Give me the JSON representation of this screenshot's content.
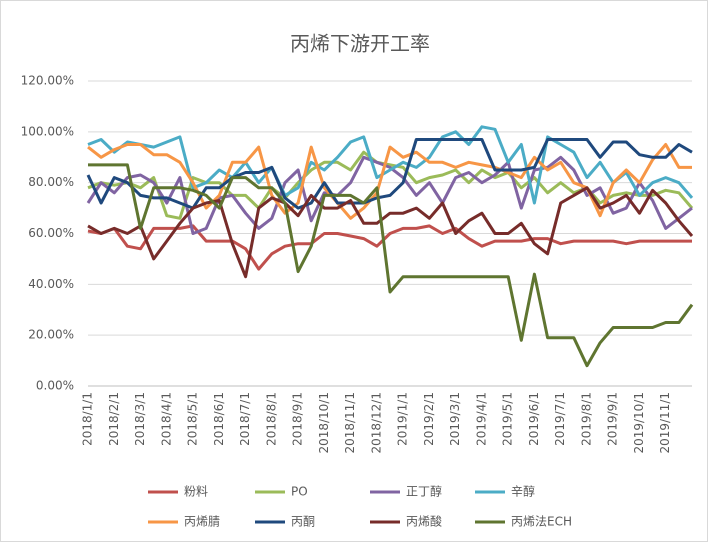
{
  "chart_data": {
    "type": "line",
    "title": "丙烯下游开工率",
    "categories": [
      "2018/1/1",
      null,
      "2018/2/1",
      null,
      "2018/3/1",
      null,
      "2018/4/1",
      null,
      "2018/5/1",
      null,
      "2018/6/1",
      null,
      "2018/7/1",
      null,
      "2018/8/1",
      null,
      "2018/9/1",
      null,
      "2018/10/1",
      null,
      "2018/11/1",
      null,
      "2018/12/1",
      null,
      "2019/1/1",
      null,
      "2019/2/1",
      null,
      "2019/3/1",
      null,
      "2019/4/1",
      null,
      "2019/5/1",
      null,
      "2019/6/1",
      null,
      "2019/7/1",
      null,
      "2019/8/1",
      null,
      "2019/9/1",
      null,
      "2019/10/1",
      null,
      "2019/11/1",
      null,
      null
    ],
    "ylim": [
      0,
      120
    ],
    "yticks": [
      {
        "value": 0,
        "label": "0.00%"
      },
      {
        "value": 20,
        "label": "20.00%"
      },
      {
        "value": 40,
        "label": "40.00%"
      },
      {
        "value": 60,
        "label": "60.00%"
      },
      {
        "value": 80,
        "label": "80.00%"
      },
      {
        "value": 100,
        "label": "100.00%"
      },
      {
        "value": 120,
        "label": "120.00%"
      }
    ],
    "grid": true,
    "legend": "bottom",
    "series": [
      {
        "name": "粉料",
        "color": "#c0504d",
        "values": [
          61,
          60,
          62,
          55,
          54,
          62,
          62,
          62,
          63,
          57,
          57,
          57,
          54,
          46,
          52,
          55,
          56,
          56,
          60,
          60,
          59,
          58,
          55,
          60,
          62,
          62,
          63,
          60,
          62,
          58,
          55,
          57,
          57,
          57,
          58,
          58,
          56,
          57,
          57,
          57,
          57,
          56,
          57,
          57,
          57,
          57,
          57
        ]
      },
      {
        "name": "PO",
        "color": "#9bbb59",
        "values": [
          78,
          80,
          79,
          80,
          78,
          82,
          67,
          66,
          82,
          80,
          80,
          75,
          75,
          70,
          78,
          74,
          80,
          85,
          88,
          88,
          85,
          92,
          88,
          87,
          86,
          80,
          82,
          83,
          85,
          80,
          85,
          82,
          84,
          78,
          82,
          76,
          80,
          76,
          78,
          72,
          75,
          76,
          75,
          75,
          77,
          76,
          70
        ]
      },
      {
        "name": "正丁醇",
        "color": "#8064a2",
        "values": [
          72,
          80,
          76,
          82,
          83,
          80,
          72,
          82,
          60,
          62,
          74,
          75,
          68,
          62,
          66,
          80,
          85,
          65,
          76,
          75,
          80,
          90,
          88,
          86,
          82,
          75,
          80,
          72,
          82,
          84,
          80,
          83,
          88,
          70,
          85,
          86,
          90,
          85,
          75,
          78,
          68,
          70,
          80,
          73,
          62,
          66,
          70
        ]
      },
      {
        "name": "辛醇",
        "color": "#4bacc6",
        "values": [
          95,
          97,
          92,
          96,
          95,
          94,
          96,
          98,
          78,
          80,
          85,
          82,
          88,
          80,
          86,
          75,
          78,
          88,
          85,
          90,
          96,
          98,
          82,
          85,
          88,
          86,
          90,
          98,
          100,
          95,
          102,
          101,
          88,
          95,
          72,
          98,
          95,
          92,
          82,
          88,
          80,
          84,
          75,
          80,
          82,
          80,
          74
        ]
      },
      {
        "name": "丙烯腈",
        "color": "#f79646",
        "values": [
          94,
          90,
          93,
          95,
          95,
          91,
          91,
          88,
          80,
          70,
          75,
          88,
          88,
          94,
          75,
          68,
          72,
          94,
          78,
          72,
          66,
          70,
          76,
          94,
          90,
          92,
          88,
          88,
          86,
          88,
          87,
          86,
          84,
          82,
          90,
          85,
          88,
          80,
          78,
          67,
          80,
          85,
          80,
          89,
          95,
          86,
          86
        ]
      },
      {
        "name": "丙酮",
        "color": "#1f497d",
        "values": [
          83,
          72,
          82,
          80,
          75,
          74,
          74,
          72,
          70,
          78,
          78,
          82,
          84,
          84,
          86,
          74,
          70,
          72,
          80,
          72,
          72,
          72,
          74,
          75,
          80,
          97,
          97,
          97,
          97,
          97,
          97,
          85,
          85,
          85,
          86,
          97,
          97,
          97,
          97,
          90,
          96,
          96,
          91,
          90,
          90,
          95,
          92
        ]
      },
      {
        "name": "丙烯酸",
        "color": "#772c2a",
        "values": [
          63,
          60,
          62,
          60,
          63,
          50,
          57,
          64,
          70,
          72,
          73,
          56,
          43,
          70,
          74,
          72,
          67,
          75,
          70,
          70,
          73,
          64,
          64,
          68,
          68,
          70,
          66,
          72,
          60,
          65,
          68,
          60,
          60,
          64,
          56,
          52,
          72,
          75,
          78,
          70,
          72,
          75,
          68,
          77,
          72,
          65,
          59
        ]
      },
      {
        "name": "丙烯法ECH",
        "color": "#5f7530",
        "values": [
          87,
          87,
          87,
          87,
          62,
          78,
          78,
          78,
          77,
          75,
          70,
          82,
          82,
          78,
          78,
          72,
          45,
          55,
          75,
          75,
          75,
          72,
          78,
          37,
          43,
          43,
          43,
          43,
          43,
          43,
          43,
          43,
          43,
          18,
          44,
          19,
          19,
          19,
          8,
          17,
          23,
          23,
          23,
          23,
          25,
          25,
          32
        ]
      }
    ]
  }
}
